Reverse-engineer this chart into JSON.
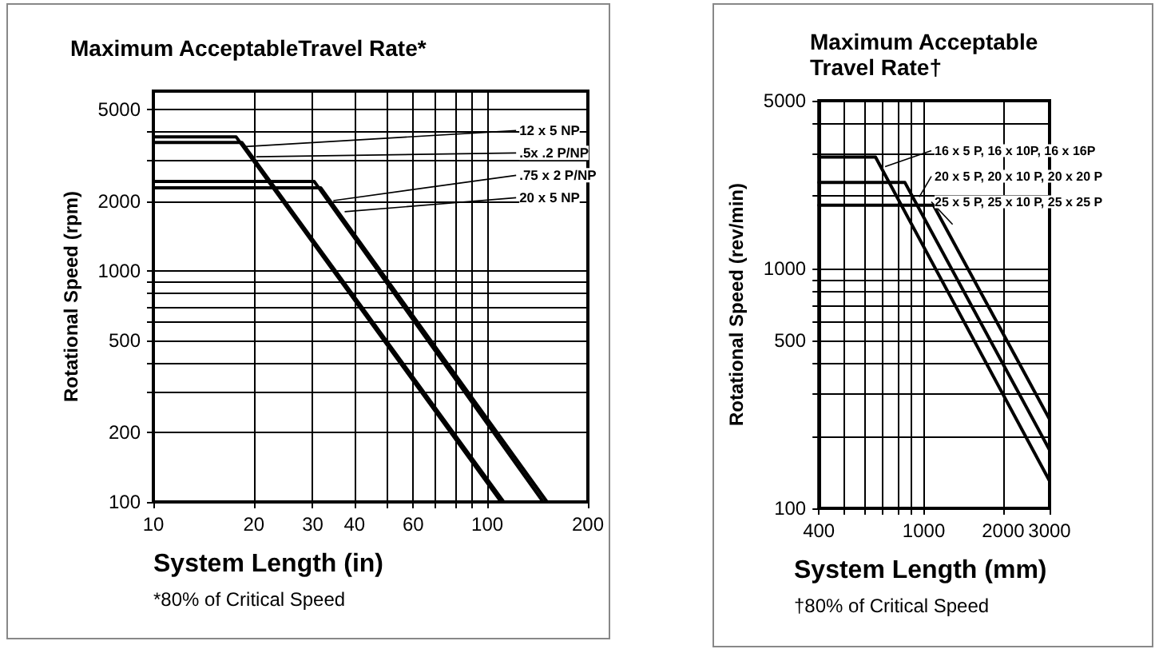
{
  "chart_data": [
    {
      "type": "line",
      "title": "Maximum AcceptableTravel Rate*",
      "xlabel": "System Length (in)",
      "ylabel": "Rotational Speed (rpm)",
      "annotations": [
        "*80% of Critical Speed"
      ],
      "log": "xy",
      "grid": true,
      "marker": "none",
      "xlim": [
        10,
        200
      ],
      "xticks": [
        10,
        20,
        30,
        40,
        {
          "value": 50,
          "label": null
        },
        60,
        {
          "value": 70,
          "label": null
        },
        {
          "value": 80,
          "label": null
        },
        {
          "value": 90,
          "label": null
        },
        100,
        200
      ],
      "ylim": [
        100,
        6000
      ],
      "yticks": [
        100,
        200,
        {
          "value": 300,
          "label": null
        },
        {
          "value": 400,
          "label": null
        },
        500,
        {
          "value": 600,
          "label": null
        },
        {
          "value": 700,
          "label": null
        },
        {
          "value": 800,
          "label": null
        },
        {
          "value": 900,
          "label": null
        },
        1000,
        2000,
        {
          "value": 3000,
          "label": null
        },
        {
          "value": 4000,
          "label": null
        },
        5000
      ],
      "series": [
        {
          "name": "12 x 5 NP",
          "color": "#000000",
          "x": [
            10,
            17.7,
            110
          ],
          "values": [
            3800,
            3800,
            100
          ]
        },
        {
          "name": ".5x .2 P/NP",
          "color": "#000000",
          "x": [
            10,
            18.4,
            112
          ],
          "values": [
            3600,
            3600,
            100
          ]
        },
        {
          "name": ".75 x 2 P/NP",
          "color": "#000000",
          "x": [
            10,
            30.3,
            147
          ],
          "values": [
            2440,
            2440,
            100
          ]
        },
        {
          "name": "20 x 5 NP",
          "color": "#000000",
          "x": [
            10,
            31.7,
            151
          ],
          "values": [
            2290,
            2290,
            100
          ]
        }
      ]
    },
    {
      "type": "line",
      "title": "Maximum Acceptable\nTravel Rate†",
      "xlabel": "System Length (mm)",
      "ylabel": "Rotational Speed (rev/min)",
      "annotations": [
        "†80% of Critical Speed"
      ],
      "log": "xy",
      "grid": true,
      "marker": "none",
      "xlim": [
        400,
        3000
      ],
      "xticks": [
        400,
        {
          "value": 500,
          "label": null
        },
        {
          "value": 600,
          "label": null
        },
        {
          "value": 700,
          "label": null
        },
        {
          "value": 800,
          "label": null
        },
        {
          "value": 900,
          "label": null
        },
        1000,
        2000,
        3000
      ],
      "ylim": [
        100,
        5000
      ],
      "yticks": [
        100,
        {
          "value": 200,
          "label": null
        },
        {
          "value": 300,
          "label": null
        },
        {
          "value": 400,
          "label": null
        },
        500,
        {
          "value": 600,
          "label": null
        },
        {
          "value": 700,
          "label": null
        },
        {
          "value": 800,
          "label": null
        },
        {
          "value": 900,
          "label": null
        },
        1000,
        {
          "value": 2000,
          "label": null
        },
        {
          "value": 3000,
          "label": null
        },
        {
          "value": 4000,
          "label": null
        },
        5000
      ],
      "series": [
        {
          "name": "16 x 5 P, 16 x 10P, 16 x 16P",
          "color": "#000000",
          "x": [
            400,
            656,
            3000
          ],
          "values": [
            2910,
            2910,
            130
          ]
        },
        {
          "name": "20 x 5 P, 20 x 10 P, 20 x 20 P",
          "color": "#000000",
          "x": [
            400,
            848,
            3000
          ],
          "values": [
            2280,
            2280,
            175
          ]
        },
        {
          "name": "25 x 5 P, 25 x 10 P, 25 x 25 P",
          "color": "#000000",
          "x": [
            400,
            1088,
            3000
          ],
          "values": [
            1835,
            1835,
            235
          ]
        }
      ]
    }
  ]
}
